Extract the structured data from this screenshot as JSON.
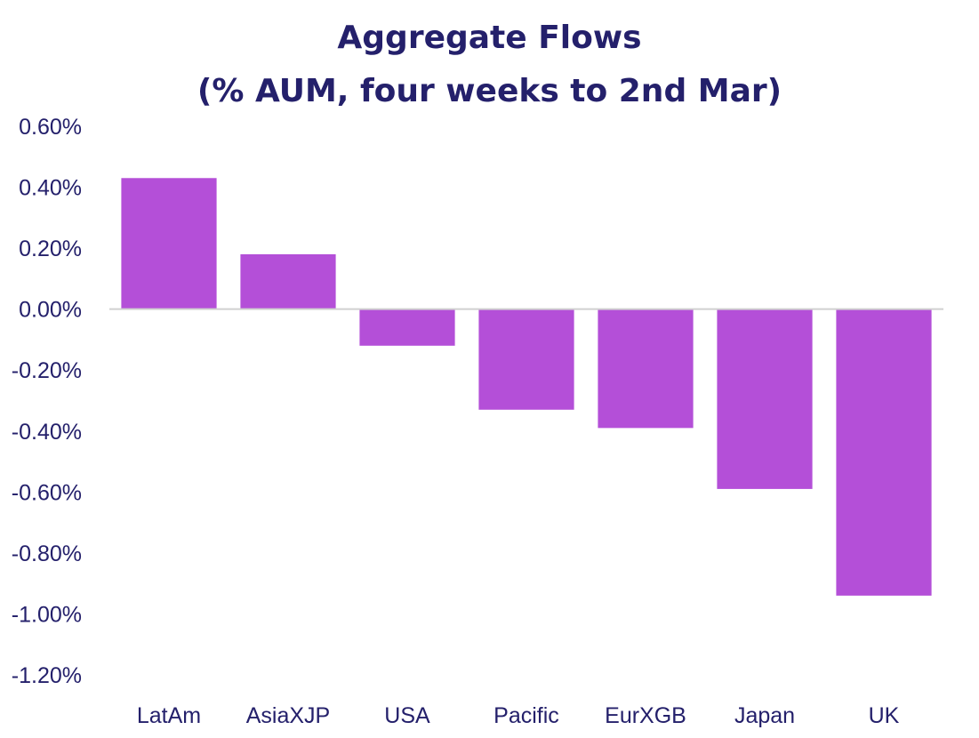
{
  "chart_data": {
    "type": "bar",
    "title": [
      "Aggregate Flows",
      "(% AUM, four weeks to 2nd Mar)"
    ],
    "categories": [
      "LatAm",
      "AsiaXJP",
      "USA",
      "Pacific",
      "EurXGB",
      "Japan",
      "UK"
    ],
    "series": [
      {
        "values": [
          0.43,
          0.18,
          -0.12,
          -0.33,
          -0.39,
          -0.59,
          -0.94
        ]
      }
    ],
    "y_ticks": [
      "0.60%",
      "0.40%",
      "0.20%",
      "0.00%",
      "-0.20%",
      "-0.40%",
      "-0.60%",
      "-0.80%",
      "-1.00%",
      "-1.20%"
    ],
    "ylim": [
      -1.2,
      0.6
    ],
    "ylabel": "",
    "xlabel": "",
    "grid": false,
    "legend": "none",
    "colors": {
      "bar": "#b44fd8",
      "title": "#24206b",
      "tick_text": "#24206b",
      "axis_line": "#d0d0d0"
    }
  }
}
